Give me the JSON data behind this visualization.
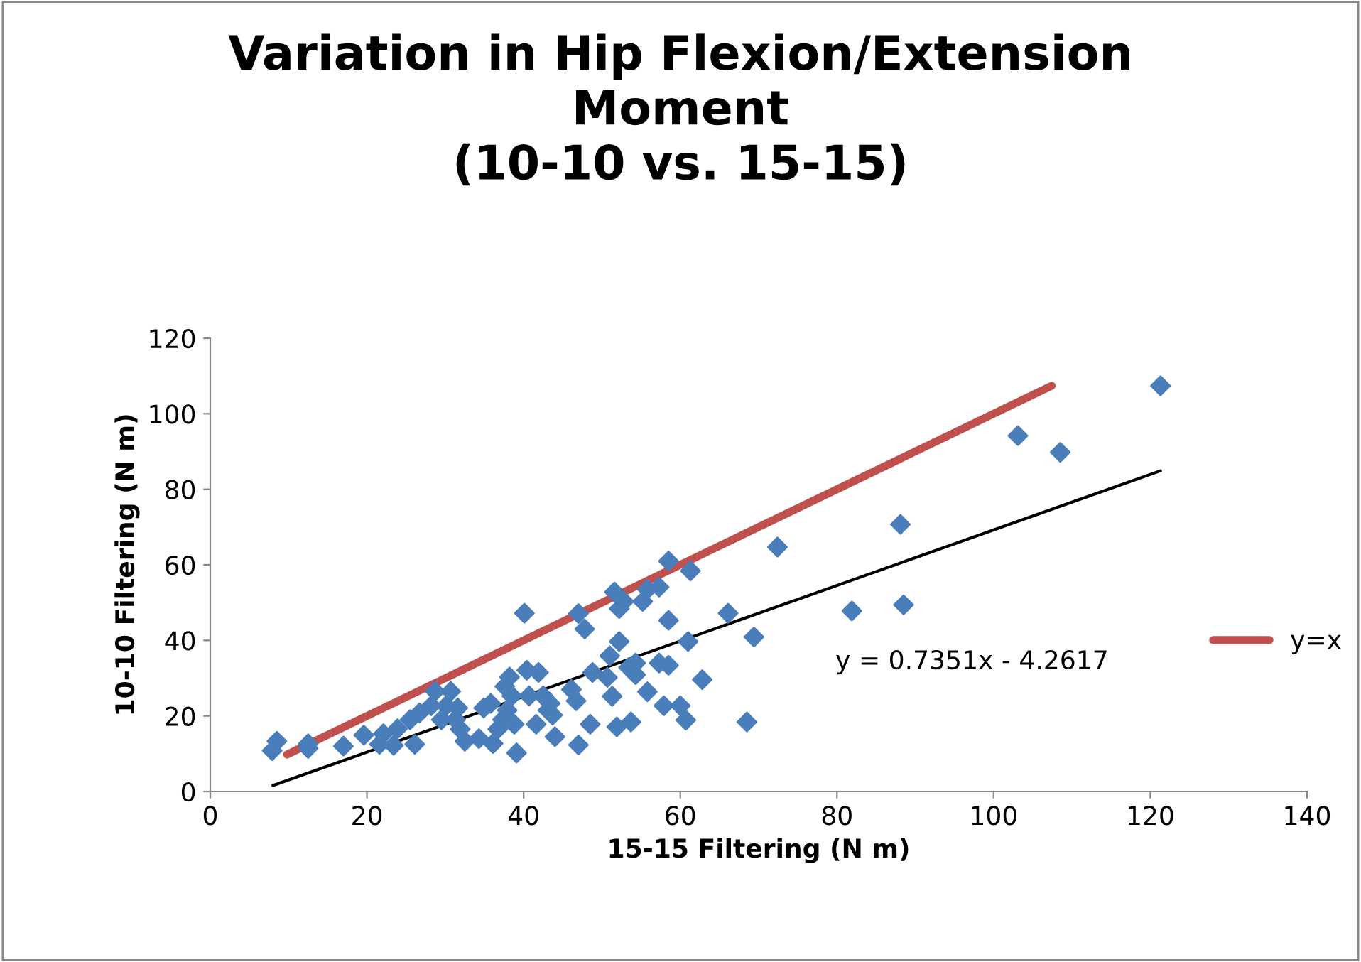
{
  "chart_data": {
    "type": "scatter",
    "title": "Variation in Hip Flexion/Extension\nMoment\n(10-10 vs. 15-15)",
    "xlabel": "15-15 Filtering (N m)",
    "ylabel": "10-10 Filtering (N m)",
    "xlim": [
      0,
      140
    ],
    "ylim": [
      0,
      120
    ],
    "xticks": [
      0,
      20,
      40,
      60,
      80,
      100,
      120,
      140
    ],
    "yticks": [
      0,
      20,
      40,
      60,
      80,
      100,
      120
    ],
    "grid": false,
    "legend": "right",
    "annotations": [
      "y = 0.7351x - 4.2617"
    ],
    "series": [
      {
        "marker": "diamond",
        "color": "#4a7ebb",
        "x": [
          7.9,
          8.5,
          12.5,
          12.5,
          17.0,
          19.6,
          21.6,
          22.1,
          23.4,
          23.9,
          26.1,
          25.5,
          26.7,
          28.7,
          28.2,
          29.5,
          30.7,
          30.1,
          31.3,
          31.9,
          32.5,
          31.6,
          34.3,
          34.9,
          35.8,
          36.1,
          36.7,
          37.3,
          37.6,
          38.2,
          38.5,
          37.9,
          38.8,
          39.1,
          40.1,
          40.4,
          41.9,
          40.7,
          41.6,
          42.5,
          43.1,
          43.4,
          43.7,
          44.0,
          47.0,
          47.8,
          47.0,
          46.1,
          46.7,
          48.5,
          48.8,
          50.7,
          51.3,
          51.0,
          52.2,
          51.6,
          52.8,
          52.2,
          51.9,
          53.7,
          53.4,
          54.3,
          54.3,
          55.2,
          55.8,
          57.3,
          55.8,
          57.3,
          58.5,
          57.9,
          58.5,
          58.5,
          60.0,
          60.7,
          61.3,
          61.0,
          62.8,
          66.1,
          68.5,
          69.4,
          72.4,
          81.9,
          88.1,
          88.5,
          103.1,
          108.5,
          121.3
        ],
        "values": [
          10.8,
          13.3,
          11.4,
          12.6,
          12.0,
          14.9,
          12.5,
          15.3,
          12.2,
          16.6,
          12.5,
          19.0,
          20.8,
          26.5,
          22.7,
          19.0,
          26.5,
          22.7,
          19.0,
          16.5,
          13.3,
          22.1,
          14.0,
          22.1,
          23.3,
          12.7,
          16.5,
          19.0,
          27.8,
          30.3,
          25.3,
          21.5,
          17.8,
          10.2,
          47.2,
          32.1,
          31.5,
          25.3,
          17.8,
          25.3,
          21.5,
          23.3,
          20.2,
          14.5,
          47.1,
          43.0,
          12.3,
          27.0,
          24.0,
          17.8,
          31.5,
          30.2,
          25.2,
          35.9,
          39.7,
          52.8,
          50.3,
          48.4,
          17.1,
          18.4,
          32.8,
          30.9,
          34.0,
          50.3,
          53.5,
          54.1,
          26.4,
          34.0,
          33.4,
          22.7,
          45.3,
          61.0,
          22.7,
          18.9,
          58.4,
          39.7,
          29.6,
          47.2,
          18.4,
          40.9,
          64.7,
          47.8,
          70.7,
          49.4,
          94.2,
          89.8,
          107.4
        ]
      },
      {
        "type": "line",
        "name": "y=x",
        "marker": "none",
        "color": "#c0504d",
        "x": [
          9.8,
          107.4
        ],
        "values": [
          9.8,
          107.4
        ]
      },
      {
        "type": "line",
        "marker": "none",
        "color": "#000000",
        "x": [
          8,
          121.3
        ],
        "values": [
          1.6,
          84.9
        ]
      }
    ]
  }
}
